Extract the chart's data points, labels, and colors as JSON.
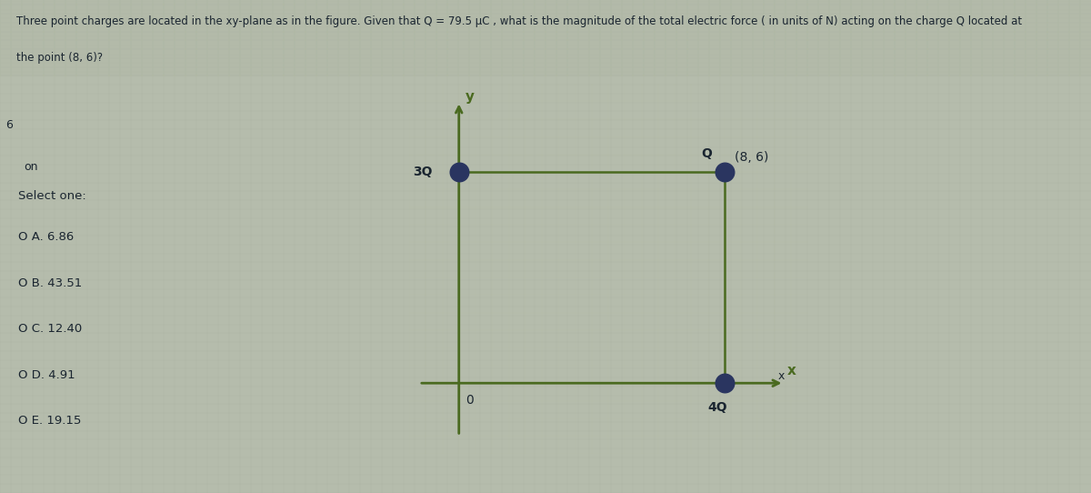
{
  "title_text_line1": "Three point charges are located in the xy-plane as in the figure. Given that Q = 79.5 μC , what is the magnitude of the total electric force ( in units of N) acting on the charge Q located at",
  "title_text_line2": "the point (8, 6)?",
  "fig_bg_color": "#b5bcac",
  "diagram_bg_color": "#c8cdb8",
  "axis_color": "#4a6a20",
  "dot_color": "#2a3560",
  "select_one_label": "Select one:",
  "options": [
    "O A. 6.86",
    "O B. 43.51",
    "O C. 12.40",
    "O D. 4.91",
    "O E. 19.15"
  ],
  "text_color": "#1a2530",
  "title_fontsize": 8.5,
  "option_fontsize": 9.5,
  "left_margin_text1": "6",
  "left_margin_text2": "on"
}
